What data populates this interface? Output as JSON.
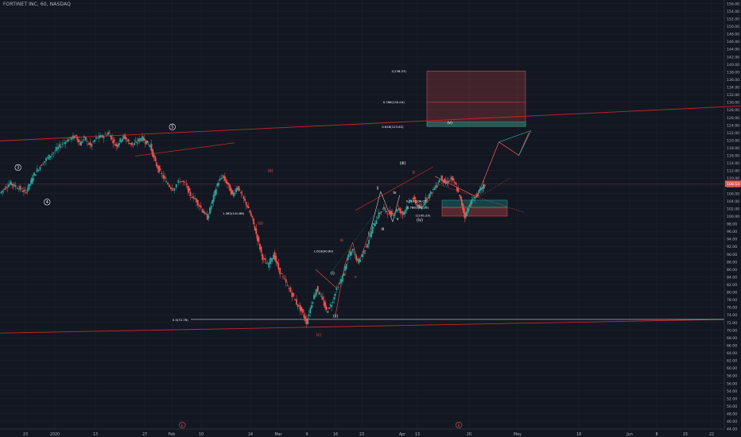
{
  "header": {
    "title": "FORTINET INC, 60, NASDAQ"
  },
  "colors": {
    "background": "#131722",
    "grid": "#1e222d",
    "text": "#b2b5be",
    "up": "#26a69a",
    "down": "#ef5350",
    "wave_red": "#d32f2f",
    "wave_white": "#ffffff",
    "price_tag": "#ef5350"
  },
  "chart_data": {
    "type": "candlestick",
    "title": "FORTINET INC, 60, NASDAQ",
    "x_tick_labels": [
      "23",
      "2020",
      "13",
      "27",
      "Feb",
      "10",
      "24",
      "Mar",
      "9",
      "16",
      "23",
      "Apr",
      "13",
      "20",
      "May",
      "18",
      "Jun",
      "8",
      "15",
      "22"
    ],
    "y_tick_labels": [
      "44.00",
      "46.00",
      "48.00",
      "50.00",
      "52.00",
      "54.00",
      "56.00",
      "58.00",
      "60.00",
      "62.00",
      "64.00",
      "66.00",
      "68.00",
      "70.00",
      "72.00",
      "74.00",
      "76.00",
      "78.00",
      "80.00",
      "82.00",
      "84.00",
      "86.00",
      "88.00",
      "90.00",
      "92.00",
      "94.00",
      "96.00",
      "98.00",
      "100.00",
      "102.00",
      "104.00",
      "106.00",
      "108.00",
      "110.00",
      "112.00",
      "114.00",
      "116.00",
      "118.00",
      "120.00",
      "122.00",
      "124.00",
      "126.00",
      "128.00",
      "130.00",
      "132.00",
      "134.00",
      "136.00",
      "138.00",
      "140.00",
      "142.00",
      "144.00",
      "146.00",
      "148.00",
      "150.00",
      "152.00",
      "154.00",
      "156.00"
    ],
    "ylim": [
      43.5,
      156.5
    ],
    "last_price": "108.53",
    "price_path": [
      [
        0.0,
        106.0
      ],
      [
        0.05,
        107.5
      ],
      [
        0.1,
        108.7
      ],
      [
        0.14,
        108.0
      ],
      [
        0.2,
        107.2
      ],
      [
        0.25,
        106.2
      ],
      [
        0.3,
        108.5
      ],
      [
        0.34,
        111.0
      ],
      [
        0.4,
        113.2
      ],
      [
        0.46,
        115.0
      ],
      [
        0.52,
        116.5
      ],
      [
        0.58,
        118.0
      ],
      [
        0.64,
        119.5
      ],
      [
        0.7,
        120.5
      ],
      [
        0.76,
        121.0
      ],
      [
        0.8,
        119.0
      ],
      [
        0.84,
        120.5
      ],
      [
        0.9,
        118.5
      ],
      [
        0.96,
        120.5
      ],
      [
        1.02,
        121.0
      ],
      [
        1.08,
        122.0
      ],
      [
        1.12,
        120.2
      ],
      [
        1.16,
        118.5
      ],
      [
        1.2,
        120.0
      ],
      [
        1.24,
        121.0
      ],
      [
        1.28,
        119.5
      ],
      [
        1.33,
        118.8
      ],
      [
        1.38,
        120.0
      ],
      [
        1.42,
        120.5
      ],
      [
        1.46,
        119.5
      ],
      [
        1.5,
        118.5
      ],
      [
        1.55,
        114.0
      ],
      [
        1.6,
        111.5
      ],
      [
        1.66,
        108.8
      ],
      [
        1.72,
        107.2
      ],
      [
        1.8,
        109.5
      ],
      [
        1.86,
        108.0
      ],
      [
        1.9,
        105.5
      ],
      [
        1.96,
        104.0
      ],
      [
        2.02,
        101.5
      ],
      [
        2.07,
        99.5
      ],
      [
        2.12,
        104.0
      ],
      [
        2.17,
        108.5
      ],
      [
        2.22,
        110.5
      ],
      [
        2.27,
        108.5
      ],
      [
        2.32,
        105.5
      ],
      [
        2.37,
        107.8
      ],
      [
        2.42,
        105.0
      ],
      [
        2.47,
        102.5
      ],
      [
        2.52,
        99.0
      ],
      [
        2.57,
        94.0
      ],
      [
        2.62,
        89.0
      ],
      [
        2.67,
        87.0
      ],
      [
        2.73,
        90.0
      ],
      [
        2.78,
        86.0
      ],
      [
        2.84,
        83.0
      ],
      [
        2.9,
        80.0
      ],
      [
        2.96,
        77.0
      ],
      [
        3.01,
        75.0
      ],
      [
        3.06,
        72.0
      ],
      [
        3.11,
        77.0
      ],
      [
        3.16,
        81.0
      ],
      [
        3.21,
        78.5
      ],
      [
        3.26,
        75.0
      ],
      [
        3.31,
        77.0
      ],
      [
        3.36,
        81.0
      ],
      [
        3.42,
        84.0
      ],
      [
        3.47,
        89.0
      ],
      [
        3.52,
        91.0
      ],
      [
        3.57,
        88.0
      ],
      [
        3.62,
        90.0
      ],
      [
        3.67,
        93.0
      ],
      [
        3.72,
        97.0
      ],
      [
        3.77,
        100.0
      ],
      [
        3.82,
        102.0
      ],
      [
        3.87,
        101.0
      ],
      [
        3.92,
        100.5
      ],
      [
        3.97,
        102.0
      ],
      [
        4.02,
        100.5
      ],
      [
        4.07,
        103.0
      ],
      [
        4.12,
        105.0
      ],
      [
        4.16,
        103.0
      ],
      [
        4.2,
        102.0
      ],
      [
        4.25,
        104.5
      ],
      [
        4.3,
        106.0
      ],
      [
        4.35,
        108.0
      ],
      [
        4.4,
        110.2
      ],
      [
        4.45,
        108.5
      ],
      [
        4.5,
        110.0
      ],
      [
        4.55,
        108.0
      ],
      [
        4.6,
        104.0
      ],
      [
        4.64,
        100.0
      ],
      [
        4.68,
        102.5
      ],
      [
        4.72,
        104.5
      ],
      [
        4.76,
        105.5
      ],
      [
        4.8,
        107.0
      ],
      [
        4.84,
        108.2
      ]
    ],
    "annotations": {
      "wave_labels_white": [
        {
          "label": "3",
          "x": 0.18,
          "y": 112.8
        },
        {
          "label": "4",
          "x": 0.47,
          "y": 103.7
        },
        {
          "label": "5",
          "x": 1.72,
          "y": 123.5
        },
        {
          "label": "(iii)",
          "x": 4.02,
          "y": 114.0
        },
        {
          "label": "(iv)",
          "x": 4.19,
          "y": 99.0
        },
        {
          "label": "(i)",
          "x": 3.32,
          "y": 85.0
        },
        {
          "label": "(ii)",
          "x": 3.35,
          "y": 73.7
        },
        {
          "label": "(v)",
          "x": 4.49,
          "y": 124.7
        },
        {
          "label": "iii",
          "x": 3.82,
          "y": 96.6
        },
        {
          "label": "iv",
          "x": 3.94,
          "y": 106.2
        },
        {
          "label": "v",
          "x": 3.97,
          "y": 99.3
        },
        {
          "label": "ii",
          "x": 3.77,
          "y": 107.4
        },
        {
          "label": "i",
          "x": 3.68,
          "y": 95.5
        }
      ],
      "wave_labels_red": [
        {
          "label": "(b)",
          "x": 2.7,
          "y": 112.0
        },
        {
          "label": "(a)",
          "x": 2.6,
          "y": 98.2
        },
        {
          "label": "(c)",
          "x": 3.18,
          "y": 68.8
        },
        {
          "label": "iii",
          "x": 3.41,
          "y": 93.7
        },
        {
          "label": "ii",
          "x": 3.49,
          "y": 90.7
        },
        {
          "label": "iv",
          "x": 3.44,
          "y": 84.7
        },
        {
          "label": "v",
          "x": 3.55,
          "y": 84.1
        },
        {
          "label": "b",
          "x": 4.13,
          "y": 111.6
        }
      ],
      "fib_labels": [
        {
          "label": "1.382(100.88)",
          "x": 2.33,
          "y": 100.8
        },
        {
          "label": "1.618(90.80)",
          "x": 3.23,
          "y": 90.8
        },
        {
          "label": "0.5(72.76)",
          "x": 1.8,
          "y": 72.7
        },
        {
          "label": "1(138.23)",
          "x": 3.98,
          "y": 138.2
        },
        {
          "label": "0.786(130.04)",
          "x": 3.93,
          "y": 130.0
        },
        {
          "label": "0.618(123.62)",
          "x": 3.92,
          "y": 123.6
        },
        {
          "label": "0.618(104.05)",
          "x": 4.16,
          "y": 104.0
        },
        {
          "label": "1.786(102.26)",
          "x": 4.17,
          "y": 102.3
        },
        {
          "label": "1(100.23)",
          "x": 4.22,
          "y": 100.2
        }
      ],
      "bottom_markers": [
        {
          "label": "E",
          "x": 1.82
        },
        {
          "label": "E",
          "x": 4.58
        }
      ]
    }
  }
}
